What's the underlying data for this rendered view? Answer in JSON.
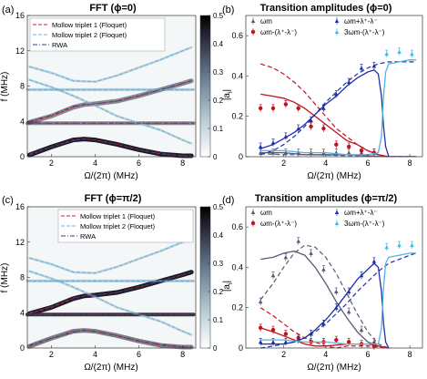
{
  "colors": {
    "dark_gray": "#5a5a78",
    "red": "#c1121f",
    "blue": "#1f2fa8",
    "light_blue": "#4fb3e6",
    "mollow1": "#c8203a",
    "mollow2": "#5ab4e8",
    "rwa": "#3a3a8a"
  },
  "chart_data": [
    {
      "panel": "(a)",
      "type": "heatmap",
      "title": "FFT (ϕ=0)",
      "xlabel": "Ω/(2π) (MHz)",
      "ylabel": "f (MHz)",
      "xlim": [
        0.9,
        8.6
      ],
      "ylim": [
        0,
        16
      ],
      "xticks": [
        "2",
        "4",
        "6",
        "8"
      ],
      "yticks": [
        "0",
        "4",
        "8",
        "12",
        "16"
      ],
      "colorbar": {
        "range": [
          0,
          0.5
        ],
        "ticks": [
          "0",
          "0.1",
          "0.2",
          "0.3",
          "0.4",
          "0.5"
        ]
      },
      "legend": [
        "Mollow triplet 1 (Floquet)",
        "Mollow triplet 2 (Floquet)",
        "RWA"
      ],
      "legend_position": "top-left",
      "curves": {
        "mollow1_upper": {
          "x": [
            1,
            2,
            3,
            3.5,
            4,
            5,
            6,
            7,
            8,
            8.4
          ],
          "y": [
            3.9,
            4.6,
            5.6,
            5.9,
            6.0,
            6.3,
            6.9,
            7.6,
            8.3,
            8.6
          ]
        },
        "mollow1_lower": {
          "x": [
            1,
            2,
            3,
            3.5,
            4,
            5,
            6,
            7,
            8,
            8.4
          ],
          "y": [
            0.2,
            1.1,
            1.9,
            2.0,
            1.9,
            1.4,
            0.8,
            0.3,
            0.1,
            0.1
          ]
        },
        "mollow1_center": {
          "x": [
            0.9,
            8.5
          ],
          "y": [
            3.8,
            3.8
          ]
        },
        "mollow2_upper": {
          "x": [
            1,
            2,
            3,
            4,
            5,
            6,
            7,
            8,
            8.4
          ],
          "y": [
            10.2,
            9.5,
            8.6,
            8.5,
            9.2,
            10.1,
            11.0,
            12.0,
            12.4
          ]
        },
        "mollow2_lower": {
          "x": [
            1,
            2,
            3,
            4,
            5,
            6,
            7,
            8,
            8.4
          ],
          "y": [
            8.7,
            7.9,
            6.9,
            5.8,
            4.6,
            3.8,
            3.0,
            1.9,
            1.5
          ]
        },
        "mollow2_center": {
          "x": [
            0.9,
            8.5
          ],
          "y": [
            7.6,
            7.6
          ]
        },
        "rwa_upper": {
          "x": [
            1,
            2,
            3,
            3.5,
            4,
            5,
            6,
            7,
            8,
            8.4
          ],
          "y": [
            4.0,
            4.7,
            5.7,
            5.9,
            6.0,
            6.3,
            6.9,
            7.6,
            8.3,
            8.6
          ]
        },
        "rwa_lower": {
          "x": [
            1,
            2,
            3,
            3.5,
            4,
            5,
            6,
            7,
            8,
            8.4
          ],
          "y": [
            0.3,
            1.1,
            1.8,
            2.0,
            1.9,
            1.4,
            0.8,
            0.4,
            0.1,
            0.1
          ]
        },
        "rwa_center": {
          "x": [
            0.9,
            8.5
          ],
          "y": [
            3.8,
            3.8
          ]
        }
      }
    },
    {
      "panel": "(b)",
      "type": "scatter",
      "title": "Transition amplitudes (ϕ=0)",
      "xlabel": "Ω/(2π) (MHz)",
      "ylabel": "|a",
      "ylabel_sub": "i",
      "xlim": [
        0.2,
        8.6
      ],
      "ylim": [
        0,
        0.7
      ],
      "xticks": [
        "2",
        "4",
        "6",
        "8"
      ],
      "yticks": [
        "0",
        "0.2",
        "0.4",
        "0.6"
      ],
      "legend_position": "top",
      "series": [
        {
          "name": "ωm",
          "color_key": "dark_gray",
          "points_x": [
            0.9,
            1.5,
            2.1,
            2.7,
            3.3,
            3.9,
            4.5,
            5.1,
            5.7,
            6.3
          ],
          "points_y": [
            0.02,
            0.02,
            0.02,
            0.02,
            0.02,
            0.02,
            0.02,
            0.02,
            0.02,
            0.02
          ],
          "solid_x": [
            0.9,
            2,
            3,
            4,
            5,
            6,
            6.5,
            7,
            8.3
          ],
          "solid_y": [
            0.02,
            0.02,
            0.01,
            0.01,
            0.01,
            0.005,
            0.002,
            0.001,
            0.001
          ],
          "dashed_x": [
            0.9,
            2,
            3,
            4,
            5,
            6,
            6.5,
            7,
            8.3
          ],
          "dashed_y": [
            0.015,
            0.01,
            0.01,
            0.008,
            0.005,
            0.004,
            0.003,
            0.002,
            0.001
          ]
        },
        {
          "name": "ωm-(λ⁺-λ⁻)",
          "color_key": "red",
          "points_x": [
            0.9,
            1.5,
            2.1,
            2.7,
            3.3,
            3.9,
            4.5,
            5.1,
            5.7,
            6.3
          ],
          "points_y": [
            0.24,
            0.24,
            0.26,
            0.24,
            0.15,
            0.14,
            0.06,
            0.05,
            0.03,
            0.02
          ],
          "solid_x": [
            0.9,
            1.5,
            2,
            2.5,
            3,
            3.5,
            4,
            4.5,
            5,
            5.5,
            6,
            6.5,
            7
          ],
          "solid_y": [
            0.31,
            0.3,
            0.29,
            0.27,
            0.24,
            0.2,
            0.16,
            0.12,
            0.08,
            0.06,
            0.03,
            0.01,
            0.0
          ],
          "dashed_x": [
            0.9,
            1.5,
            2,
            2.5,
            3,
            3.5,
            4,
            4.5,
            5,
            5.5,
            6,
            6.5,
            7
          ],
          "dashed_y": [
            0.46,
            0.44,
            0.41,
            0.37,
            0.32,
            0.26,
            0.2,
            0.14,
            0.1,
            0.06,
            0.03,
            0.01,
            0.0
          ]
        },
        {
          "name": "ωm+λ⁺-λ⁻",
          "color_key": "blue",
          "points_x": [
            0.9,
            1.5,
            2.1,
            2.7,
            3.3,
            3.9,
            4.5,
            5.1,
            5.7,
            6.3
          ],
          "points_y": [
            0.05,
            0.07,
            0.1,
            0.14,
            0.18,
            0.24,
            0.31,
            0.37,
            0.44,
            0.45
          ],
          "solid_x": [
            0.9,
            1.5,
            2,
            2.5,
            3,
            3.5,
            4,
            4.5,
            5,
            5.5,
            6,
            6.3,
            6.5,
            6.65,
            6.75,
            6.85,
            7
          ],
          "solid_y": [
            0.04,
            0.06,
            0.09,
            0.12,
            0.16,
            0.21,
            0.26,
            0.3,
            0.35,
            0.39,
            0.42,
            0.43,
            0.41,
            0.3,
            0.15,
            0.05,
            0.0
          ],
          "dashed_x": [
            0.9,
            1.5,
            2,
            2.5,
            3,
            3.5,
            4,
            4.5,
            5,
            5.5,
            6,
            6.5,
            7,
            7.5,
            8,
            8.3
          ],
          "dashed_y": [
            0.01,
            0.03,
            0.06,
            0.1,
            0.15,
            0.21,
            0.27,
            0.32,
            0.37,
            0.41,
            0.44,
            0.46,
            0.47,
            0.47,
            0.47,
            0.47
          ]
        },
        {
          "name": "3ωm-(λ⁺-λ⁻)",
          "color_key": "light_blue",
          "points_x": [
            6.9,
            7.5,
            8.1
          ],
          "points_y": [
            0.51,
            0.52,
            0.51
          ],
          "solid_x": [
            0.9,
            2,
            3,
            4,
            5,
            6,
            6.5,
            6.65,
            6.75,
            6.85,
            7,
            7.5,
            8,
            8.3
          ],
          "solid_y": [
            0.03,
            0.03,
            0.02,
            0.02,
            0.01,
            0.01,
            0.02,
            0.1,
            0.3,
            0.42,
            0.46,
            0.47,
            0.48,
            0.48
          ],
          "dashed_x": [],
          "dashed_y": []
        }
      ]
    },
    {
      "panel": "(c)",
      "type": "heatmap",
      "title": "FFT (ϕ=π/2)",
      "xlabel": "Ω/(2π) (MHz)",
      "ylabel": "f (MHz)",
      "xlim": [
        0.9,
        8.6
      ],
      "ylim": [
        0,
        16
      ],
      "xticks": [
        "2",
        "4",
        "6",
        "8"
      ],
      "yticks": [
        "0",
        "4",
        "8",
        "12",
        "16"
      ],
      "colorbar": {
        "range": [
          0,
          0.5
        ],
        "ticks": [
          "0",
          "0.1",
          "0.2",
          "0.3",
          "0.4",
          "0.5"
        ]
      },
      "legend": [
        "Mollow triplet 1 (Floquet)",
        "Mollow triplet 2 (Floquet)",
        "RWA"
      ],
      "legend_position": "top-right"
    },
    {
      "panel": "(d)",
      "type": "scatter",
      "title": "Transition amplitudes (ϕ=π/2)",
      "xlabel": "Ω/(2π) (MHz)",
      "ylabel": "|a",
      "ylabel_sub": "i",
      "xlim": [
        0.2,
        8.6
      ],
      "ylim": [
        0,
        0.7
      ],
      "xticks": [
        "2",
        "4",
        "6",
        "8"
      ],
      "yticks": [
        "0",
        "0.2",
        "0.4",
        "0.6"
      ],
      "legend_position": "top",
      "series": [
        {
          "name": "ωm",
          "color_key": "dark_gray",
          "points_x": [
            0.9,
            1.5,
            2.1,
            2.7,
            3.3,
            3.9,
            4.5,
            5.1,
            5.7,
            6.3
          ],
          "points_y": [
            0.23,
            0.36,
            0.45,
            0.53,
            0.47,
            0.39,
            0.28,
            0.18,
            0.09,
            0.03
          ],
          "solid_x": [
            0.9,
            1.5,
            2,
            2.5,
            3,
            3.5,
            4,
            4.5,
            5,
            5.5,
            6,
            6.5,
            7
          ],
          "solid_y": [
            0.44,
            0.45,
            0.47,
            0.48,
            0.46,
            0.4,
            0.32,
            0.23,
            0.15,
            0.08,
            0.03,
            0.01,
            0.0
          ],
          "dashed_x": [
            0.9,
            1.5,
            2,
            2.5,
            3,
            3.5,
            4,
            4.5,
            5,
            5.5,
            6,
            6.5,
            7
          ],
          "dashed_y": [
            0.24,
            0.32,
            0.4,
            0.47,
            0.51,
            0.5,
            0.45,
            0.37,
            0.27,
            0.17,
            0.08,
            0.02,
            0.0
          ]
        },
        {
          "name": "ωm-(λ⁺-λ⁻)",
          "color_key": "red",
          "points_x": [
            0.9,
            1.5,
            2.1,
            2.7,
            3.3,
            3.9,
            4.5,
            5.1,
            5.7,
            6.3
          ],
          "points_y": [
            0.1,
            0.09,
            0.07,
            0.05,
            0.03,
            0.03,
            0.04,
            0.03,
            0.02,
            0.01
          ],
          "solid_x": [
            0.9,
            1.5,
            2,
            2.5,
            3,
            3.5,
            4,
            5,
            6,
            7
          ],
          "solid_y": [
            0.1,
            0.08,
            0.06,
            0.04,
            0.02,
            0.01,
            0.01,
            0.02,
            0.02,
            0.0
          ],
          "dashed_x": [
            0.9,
            1.5,
            2,
            2.5,
            3,
            3.5,
            4,
            4.5,
            5,
            6,
            7
          ],
          "dashed_y": [
            0.2,
            0.16,
            0.12,
            0.08,
            0.05,
            0.03,
            0.01,
            0.0,
            0.01,
            0.01,
            0.0
          ]
        },
        {
          "name": "ωm+λ⁺-λ⁻",
          "color_key": "blue",
          "points_x": [
            0.9,
            1.5,
            2.1,
            2.7,
            3.3,
            3.9,
            4.5,
            5.1,
            5.7,
            6.3
          ],
          "points_y": [
            0.03,
            0.03,
            0.03,
            0.04,
            0.07,
            0.12,
            0.2,
            0.28,
            0.36,
            0.43
          ],
          "solid_x": [
            0.9,
            1.5,
            2,
            2.5,
            3,
            3.5,
            4,
            4.5,
            5,
            5.5,
            6,
            6.3,
            6.5,
            6.65,
            6.75,
            6.85,
            7
          ],
          "solid_y": [
            0.02,
            0.02,
            0.02,
            0.03,
            0.05,
            0.09,
            0.14,
            0.2,
            0.27,
            0.34,
            0.39,
            0.42,
            0.4,
            0.28,
            0.12,
            0.03,
            0.0
          ],
          "dashed_x": [
            0.9,
            1.5,
            2,
            2.5,
            3,
            3.5,
            4,
            4.5,
            5,
            5.5,
            6,
            6.5,
            7,
            7.5,
            8,
            8.3
          ],
          "dashed_y": [
            0.0,
            0.01,
            0.02,
            0.03,
            0.05,
            0.08,
            0.12,
            0.17,
            0.22,
            0.28,
            0.33,
            0.38,
            0.42,
            0.44,
            0.46,
            0.47
          ]
        },
        {
          "name": "3ωm-(λ⁺-λ⁻)",
          "color_key": "light_blue",
          "points_x": [
            6.9,
            7.5,
            8.1
          ],
          "points_y": [
            0.5,
            0.51,
            0.51
          ],
          "solid_x": [
            0.9,
            2,
            3,
            4,
            5,
            6,
            6.5,
            6.65,
            6.75,
            6.85,
            7,
            7.5,
            8,
            8.3
          ],
          "solid_y": [
            0.04,
            0.04,
            0.03,
            0.03,
            0.02,
            0.02,
            0.02,
            0.1,
            0.3,
            0.42,
            0.45,
            0.46,
            0.47,
            0.47
          ],
          "dashed_x": [],
          "dashed_y": []
        }
      ]
    }
  ]
}
